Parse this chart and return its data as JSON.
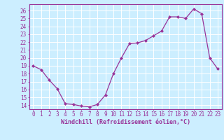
{
  "x": [
    0,
    1,
    2,
    3,
    4,
    5,
    6,
    7,
    8,
    9,
    10,
    11,
    12,
    13,
    14,
    15,
    16,
    17,
    18,
    19,
    20,
    21,
    22,
    23
  ],
  "y": [
    19,
    18.5,
    17.2,
    16.1,
    14.2,
    14.1,
    13.9,
    13.8,
    14.1,
    15.3,
    18.0,
    20.0,
    21.8,
    21.9,
    22.2,
    22.8,
    23.4,
    25.2,
    25.2,
    25.0,
    26.2,
    25.6,
    20.0,
    18.6
  ],
  "line_color": "#993399",
  "marker_color": "#993399",
  "bg_color": "#cceeff",
  "grid_color": "#ffffff",
  "ylabel_ticks": [
    14,
    15,
    16,
    17,
    18,
    19,
    20,
    21,
    22,
    23,
    24,
    25,
    26
  ],
  "xlabel": "Windchill (Refroidissement éolien,°C)",
  "ylim": [
    13.5,
    26.8
  ],
  "xlim": [
    -0.5,
    23.5
  ],
  "tick_fontsize": 5.5,
  "label_fontsize": 6.0
}
